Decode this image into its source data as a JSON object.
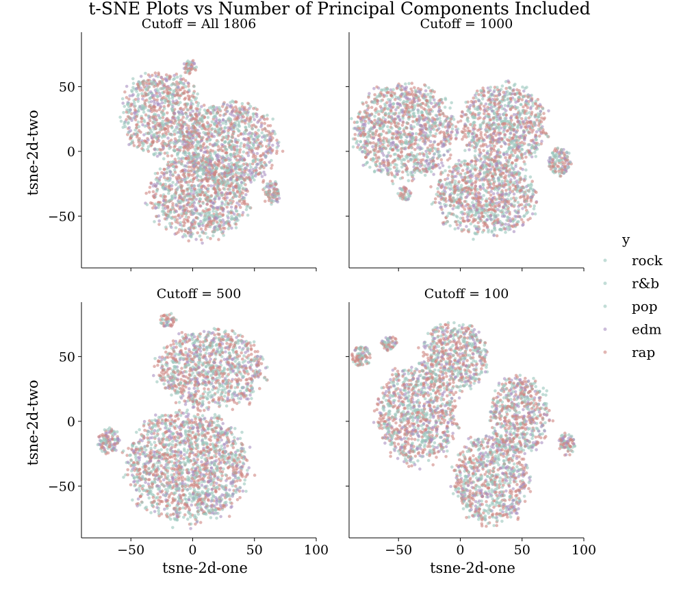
{
  "suptitle": "t-SNE Plots vs Number of Principal Components Included",
  "legend": {
    "title": "y",
    "items": [
      {
        "label": "rock"
      },
      {
        "label": "r&b"
      },
      {
        "label": "pop"
      },
      {
        "label": "edm"
      },
      {
        "label": "rap"
      }
    ]
  },
  "colors": {
    "teal": "#9ac6bd",
    "rose": "#cf8580",
    "lavender": "#a98fc2"
  },
  "chart_data": [
    {
      "type": "scatter",
      "title": "Cutoff = All 1806",
      "xlabel": "",
      "ylabel": "tsne-2d-two",
      "xlim": [
        -90,
        100
      ],
      "ylim": [
        -90,
        92
      ],
      "xticks": [
        "−50",
        "0",
        "50",
        "100"
      ],
      "yticks": [
        "50",
        "0",
        "−50"
      ],
      "show_xtick_labels": false,
      "show_ytick_labels": true,
      "clusters": [
        {
          "cx": -25,
          "cy": 28,
          "rx": 30,
          "ry": 30,
          "density": "high"
        },
        {
          "cx": 30,
          "cy": 5,
          "rx": 35,
          "ry": 30,
          "density": "high"
        },
        {
          "cx": 5,
          "cy": -35,
          "rx": 37,
          "ry": 30,
          "density": "high"
        },
        {
          "cx": -2,
          "cy": 65,
          "rx": 5,
          "ry": 6,
          "density": "medium"
        },
        {
          "cx": 64,
          "cy": -32,
          "rx": 6,
          "ry": 9,
          "density": "medium"
        }
      ]
    },
    {
      "type": "scatter",
      "title": "Cutoff = 1000",
      "xlabel": "",
      "ylabel": "",
      "xlim": [
        -90,
        100
      ],
      "ylim": [
        -90,
        92
      ],
      "xticks": [
        "−50",
        "0",
        "50",
        "100"
      ],
      "yticks": [
        "50",
        "0",
        "−50"
      ],
      "show_xtick_labels": false,
      "show_ytick_labels": false,
      "clusters": [
        {
          "cx": -45,
          "cy": 15,
          "rx": 38,
          "ry": 34,
          "density": "high"
        },
        {
          "cx": 35,
          "cy": 20,
          "rx": 32,
          "ry": 30,
          "density": "high"
        },
        {
          "cx": 20,
          "cy": -35,
          "rx": 38,
          "ry": 28,
          "density": "high"
        },
        {
          "cx": -45,
          "cy": -33,
          "rx": 5,
          "ry": 5,
          "density": "medium"
        },
        {
          "cx": 80,
          "cy": -8,
          "rx": 8,
          "ry": 10,
          "density": "medium"
        }
      ]
    },
    {
      "type": "scatter",
      "title": "Cutoff = 500",
      "xlabel": "tsne-2d-one",
      "ylabel": "tsne-2d-two",
      "xlim": [
        -90,
        100
      ],
      "ylim": [
        -90,
        92
      ],
      "xticks": [
        "−50",
        "0",
        "50",
        "100"
      ],
      "yticks": [
        "50",
        "0",
        "−50"
      ],
      "show_xtick_labels": true,
      "show_ytick_labels": true,
      "clusters": [
        {
          "cx": 15,
          "cy": 40,
          "rx": 40,
          "ry": 28,
          "density": "high"
        },
        {
          "cx": -5,
          "cy": -35,
          "rx": 45,
          "ry": 40,
          "density": "high"
        },
        {
          "cx": -20,
          "cy": 78,
          "rx": 6,
          "ry": 5,
          "density": "medium"
        },
        {
          "cx": -68,
          "cy": -15,
          "rx": 8,
          "ry": 9,
          "density": "medium"
        }
      ]
    },
    {
      "type": "scatter",
      "title": "Cutoff = 100",
      "xlabel": "tsne-2d-one",
      "ylabel": "",
      "xlim": [
        -90,
        100
      ],
      "ylim": [
        -90,
        92
      ],
      "xticks": [
        "−50",
        "0",
        "50",
        "100"
      ],
      "yticks": [
        "50",
        "0",
        "−50"
      ],
      "show_xtick_labels": true,
      "show_ytick_labels": false,
      "clusters": [
        {
          "cx": -35,
          "cy": 5,
          "rx": 30,
          "ry": 35,
          "density": "high"
        },
        {
          "cx": -5,
          "cy": 50,
          "rx": 25,
          "ry": 25,
          "density": "high"
        },
        {
          "cx": 48,
          "cy": 5,
          "rx": 22,
          "ry": 28,
          "density": "high"
        },
        {
          "cx": 25,
          "cy": -45,
          "rx": 28,
          "ry": 32,
          "density": "high"
        },
        {
          "cx": -80,
          "cy": 50,
          "rx": 7,
          "ry": 8,
          "density": "medium"
        },
        {
          "cx": -57,
          "cy": 60,
          "rx": 6,
          "ry": 6,
          "density": "medium"
        },
        {
          "cx": 86,
          "cy": -17,
          "rx": 6,
          "ry": 8,
          "density": "medium"
        }
      ]
    }
  ]
}
